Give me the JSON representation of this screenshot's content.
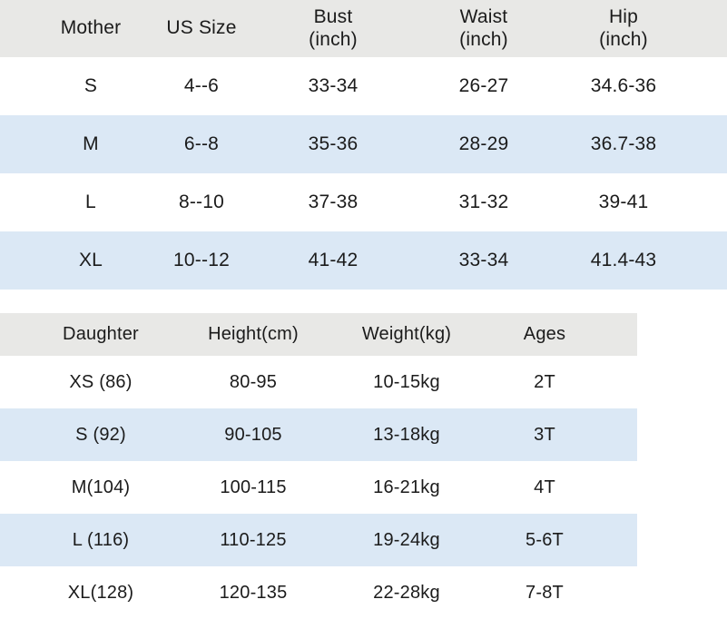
{
  "colors": {
    "page_bg": "#ffffff",
    "header_bg": "#e8e8e6",
    "stripe_bg": "#dbe8f5",
    "text": "#1b1b1b"
  },
  "mother_table": {
    "columns": [
      {
        "label": "Mother",
        "sub": ""
      },
      {
        "label": "US Size",
        "sub": ""
      },
      {
        "label": "Bust",
        "sub": "(inch)"
      },
      {
        "label": "Waist",
        "sub": "(inch)"
      },
      {
        "label": "Hip",
        "sub": "(inch)"
      }
    ],
    "rows": [
      {
        "cells": [
          "S",
          "4--6",
          "33-34",
          "26-27",
          "34.6-36"
        ]
      },
      {
        "cells": [
          "M",
          "6--8",
          "35-36",
          "28-29",
          "36.7-38"
        ]
      },
      {
        "cells": [
          "L",
          "8--10",
          "37-38",
          "31-32",
          "39-41"
        ]
      },
      {
        "cells": [
          "XL",
          "10--12",
          "41-42",
          "33-34",
          "41.4-43"
        ]
      }
    ]
  },
  "daughter_table": {
    "columns": [
      "Daughter",
      "Height(cm)",
      "Weight(kg)",
      "Ages"
    ],
    "rows": [
      {
        "cells": [
          "XS (86)",
          "80-95",
          "10-15kg",
          "2T"
        ]
      },
      {
        "cells": [
          "S (92)",
          "90-105",
          "13-18kg",
          "3T"
        ]
      },
      {
        "cells": [
          "M(104)",
          "100-115",
          "16-21kg",
          "4T"
        ]
      },
      {
        "cells": [
          "L (116)",
          "110-125",
          "19-24kg",
          "5-6T"
        ]
      },
      {
        "cells": [
          "XL(128)",
          "120-135",
          "22-28kg",
          "7-8T"
        ]
      }
    ]
  }
}
